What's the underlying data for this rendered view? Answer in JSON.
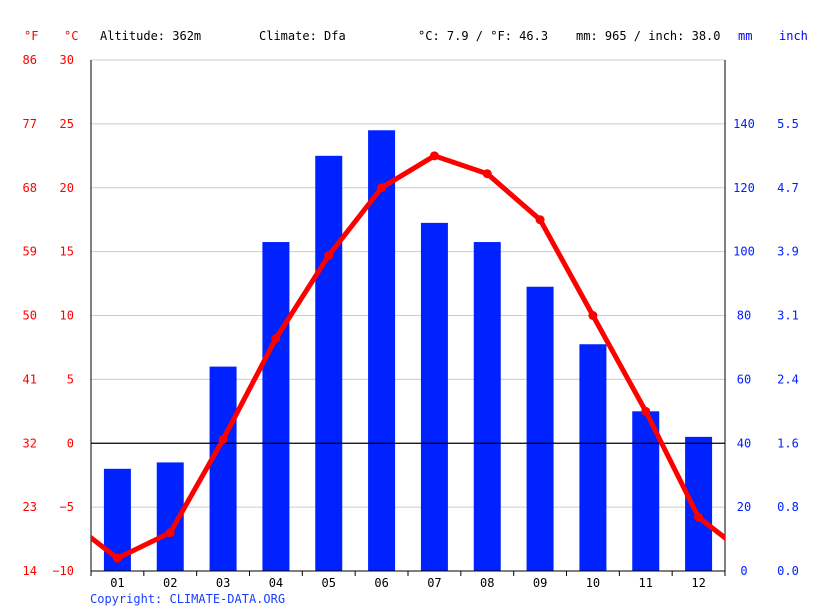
{
  "header": {
    "unit_f": "°F",
    "unit_c": "°C",
    "altitude": "Altitude: 362m",
    "climate": "Climate: Dfa",
    "avg_temp": "°C: 7.9 / °F: 46.3",
    "precip_total": "mm: 965 / inch: 38.0",
    "unit_mm": "mm",
    "unit_inch": "inch"
  },
  "copyright": "Copyright: CLIMATE-DATA.ORG",
  "colors": {
    "temperature": "#ff0000",
    "precipitation": "#0022ff",
    "grid": "#cccccc",
    "zero_line": "#000000",
    "copyright": "#1a3fff"
  },
  "chart_data": {
    "type": "bar+line",
    "categories": [
      "01",
      "02",
      "03",
      "04",
      "05",
      "06",
      "07",
      "08",
      "09",
      "10",
      "11",
      "12"
    ],
    "series": [
      {
        "kind": "bar",
        "axis": "right",
        "values": [
          32,
          34,
          64,
          103,
          130,
          138,
          109,
          103,
          89,
          71,
          50,
          42
        ]
      },
      {
        "kind": "line",
        "axis": "left",
        "values": [
          -9.0,
          -7.0,
          0.3,
          8.2,
          14.7,
          20.0,
          22.5,
          21.1,
          17.5,
          10.0,
          2.5,
          -5.8
        ]
      }
    ],
    "temperature_axis": {
      "celsius_ticks": [
        "30",
        "25",
        "20",
        "15",
        "10",
        "5",
        "0",
        "−5",
        "−10"
      ],
      "fahrenheit_ticks": [
        "86",
        "77",
        "68",
        "59",
        "50",
        "41",
        "32",
        "23",
        "14"
      ],
      "ylim": [
        -10,
        30
      ]
    },
    "precipitation_axis": {
      "mm_ticks": [
        "140",
        "120",
        "100",
        "80",
        "60",
        "40",
        "20",
        "0"
      ],
      "inch_ticks": [
        "5.5",
        "4.7",
        "3.9",
        "3.1",
        "2.4",
        "1.6",
        "0.8",
        "0.0"
      ],
      "mm_values": [
        140,
        120,
        100,
        80,
        60,
        40,
        20,
        0
      ],
      "ylim_mm": [
        0,
        160
      ]
    },
    "grid": true
  }
}
